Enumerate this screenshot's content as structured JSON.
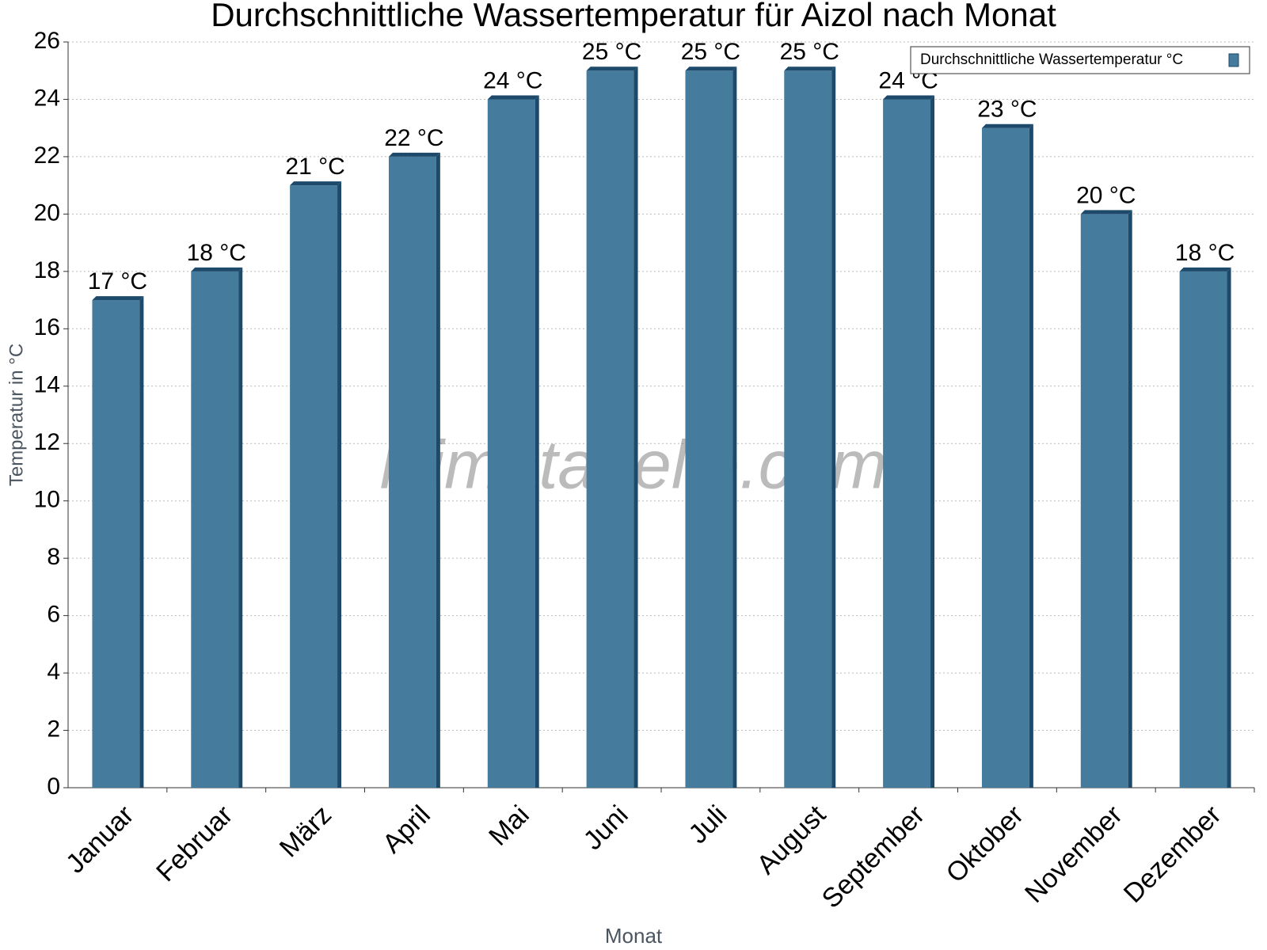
{
  "chart_data": {
    "type": "bar",
    "title": "Durchschnittliche Wassertemperatur für Aizol nach Monat",
    "x_label": "Monat",
    "y_label": "Temperatur in °C",
    "watermark": "klimatabelle.com",
    "categories": [
      "Januar",
      "Februar",
      "März",
      "April",
      "Mai",
      "Juni",
      "Juli",
      "August",
      "September",
      "Oktober",
      "November",
      "Dezember"
    ],
    "series": [
      {
        "name": "Durchschnittliche Wassertemperatur °C",
        "color": "#457b9d",
        "values": [
          17,
          18,
          21,
          22,
          24,
          25,
          25,
          25,
          24,
          23,
          20,
          18
        ],
        "value_labels": [
          "17 °C",
          "18 °C",
          "21 °C",
          "22 °C",
          "24 °C",
          "25 °C",
          "25 °C",
          "25 °C",
          "24 °C",
          "23 °C",
          "20 °C",
          "18 °C"
        ]
      }
    ],
    "ylim": [
      0,
      26
    ],
    "yticks": [
      0,
      2,
      4,
      6,
      8,
      10,
      12,
      14,
      16,
      18,
      20,
      22,
      24,
      26
    ],
    "grid": true,
    "legend": "top-right"
  }
}
